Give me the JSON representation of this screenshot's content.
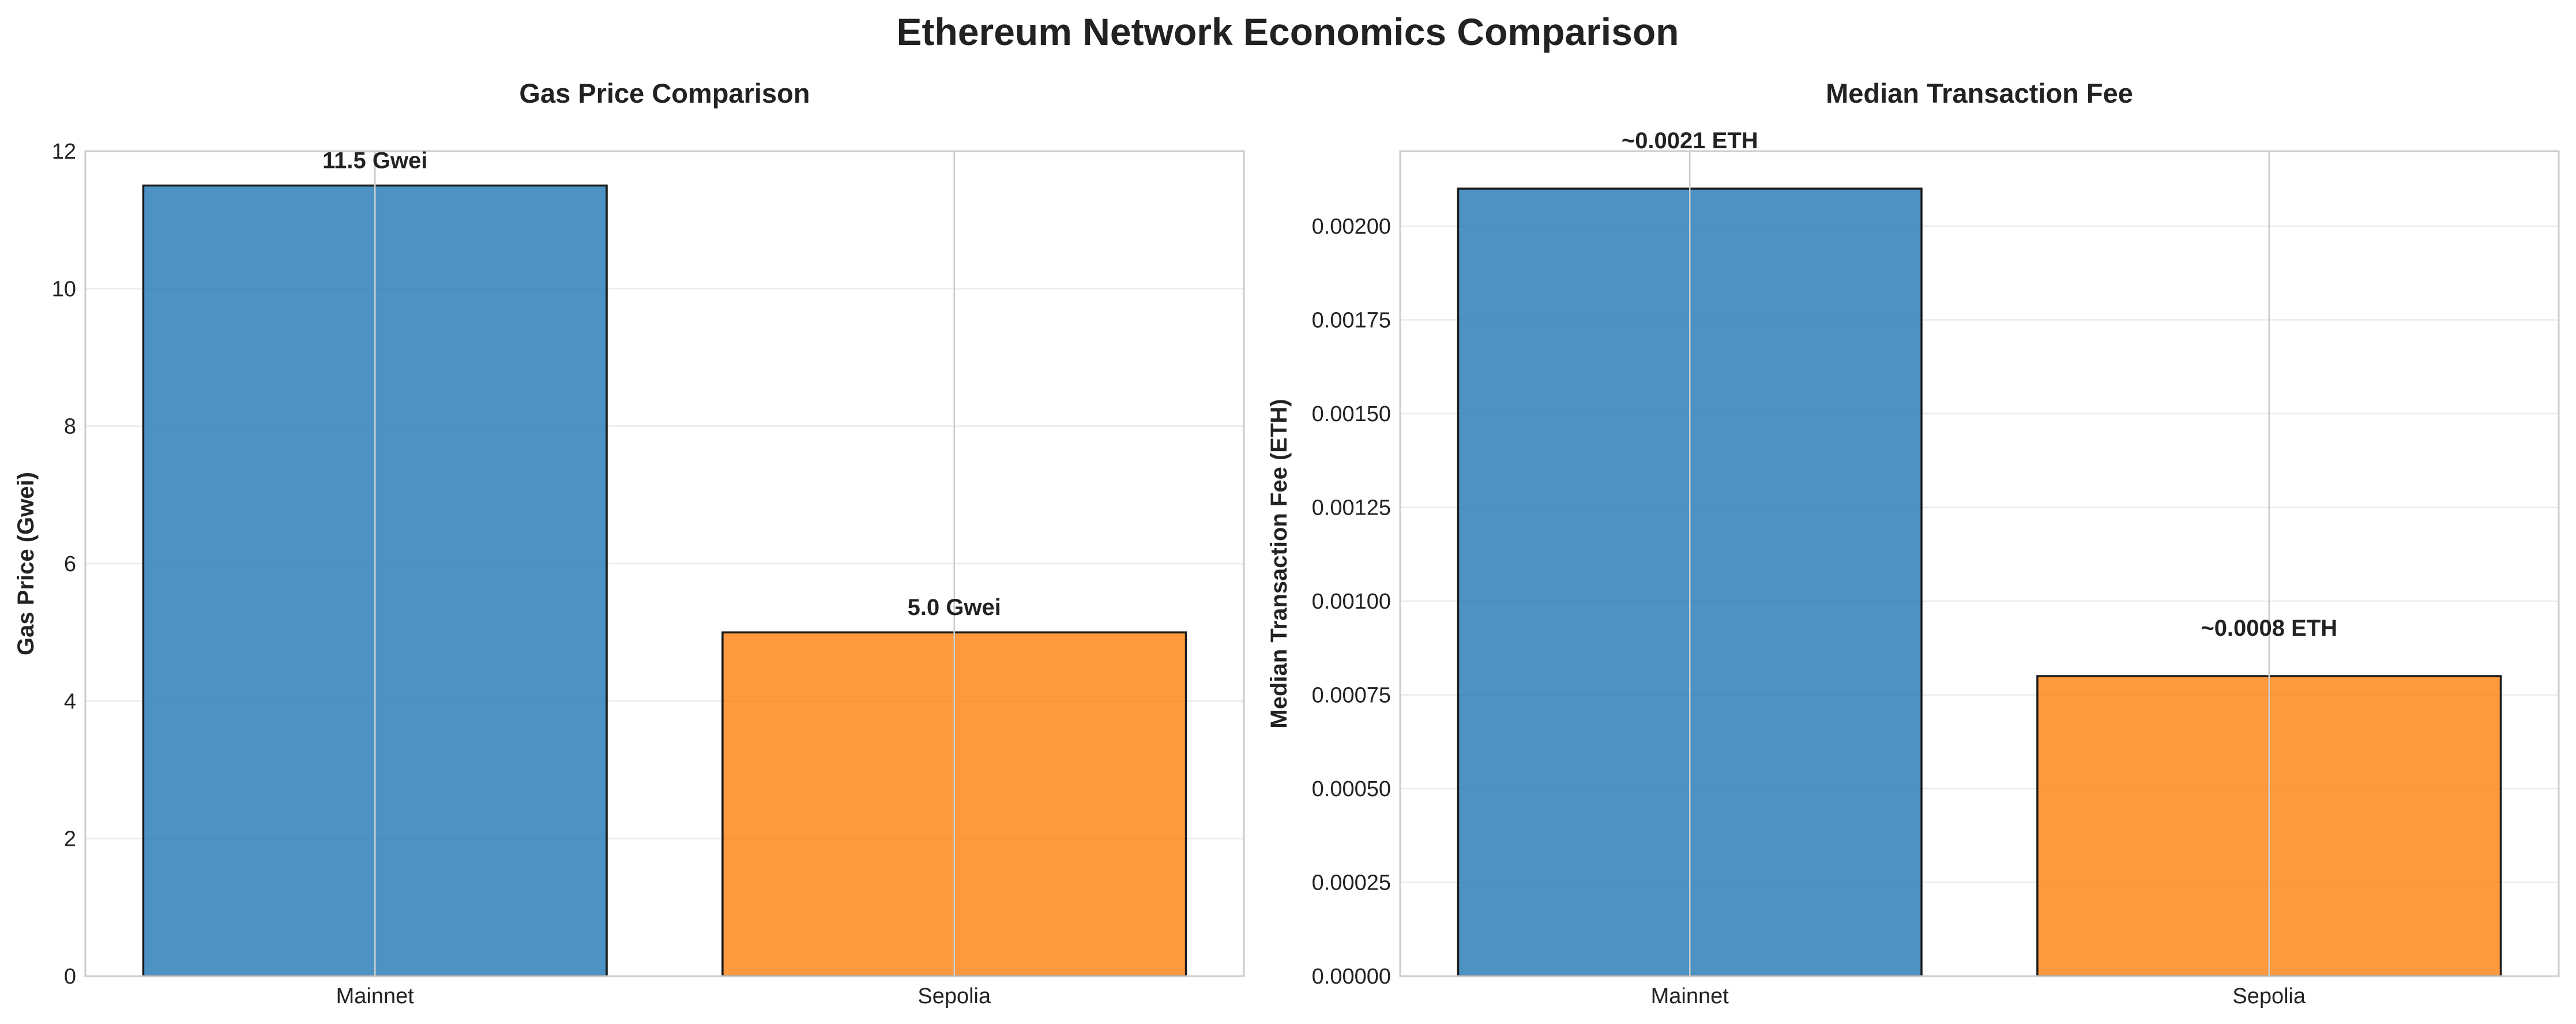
{
  "suptitle": "Ethereum Network Economics Comparison",
  "chart_data": [
    {
      "type": "bar",
      "title": "Gas Price Comparison",
      "xlabel": "",
      "ylabel": "Gas Price (Gwei)",
      "categories": [
        "Mainnet",
        "Sepolia"
      ],
      "values": [
        11.5,
        5.0
      ],
      "data_labels": [
        "11.5 Gwei",
        "5.0 Gwei"
      ],
      "colors": [
        "#1f77b4",
        "#ff7f0e"
      ],
      "ylim": [
        0,
        12
      ],
      "yticks": [
        0,
        2,
        4,
        6,
        8,
        10,
        12
      ],
      "ytick_labels": [
        "0",
        "2",
        "4",
        "6",
        "8",
        "10",
        "12"
      ],
      "grid": true,
      "legend": "none"
    },
    {
      "type": "bar",
      "title": "Median Transaction Fee",
      "xlabel": "",
      "ylabel": "Median Transaction Fee (ETH)",
      "categories": [
        "Mainnet",
        "Sepolia"
      ],
      "values": [
        0.0021,
        0.0008
      ],
      "data_labels": [
        "~0.0021 ETH",
        "~0.0008 ETH"
      ],
      "colors": [
        "#1f77b4",
        "#ff7f0e"
      ],
      "ylim": [
        0,
        0.0022
      ],
      "yticks": [
        0,
        0.00025,
        0.0005,
        0.00075,
        0.001,
        0.00125,
        0.0015,
        0.00175,
        0.002
      ],
      "ytick_labels": [
        "0.00000",
        "0.00025",
        "0.00050",
        "0.00075",
        "0.00100",
        "0.00125",
        "0.00150",
        "0.00175",
        "0.00200"
      ],
      "grid": true,
      "legend": "none"
    }
  ]
}
